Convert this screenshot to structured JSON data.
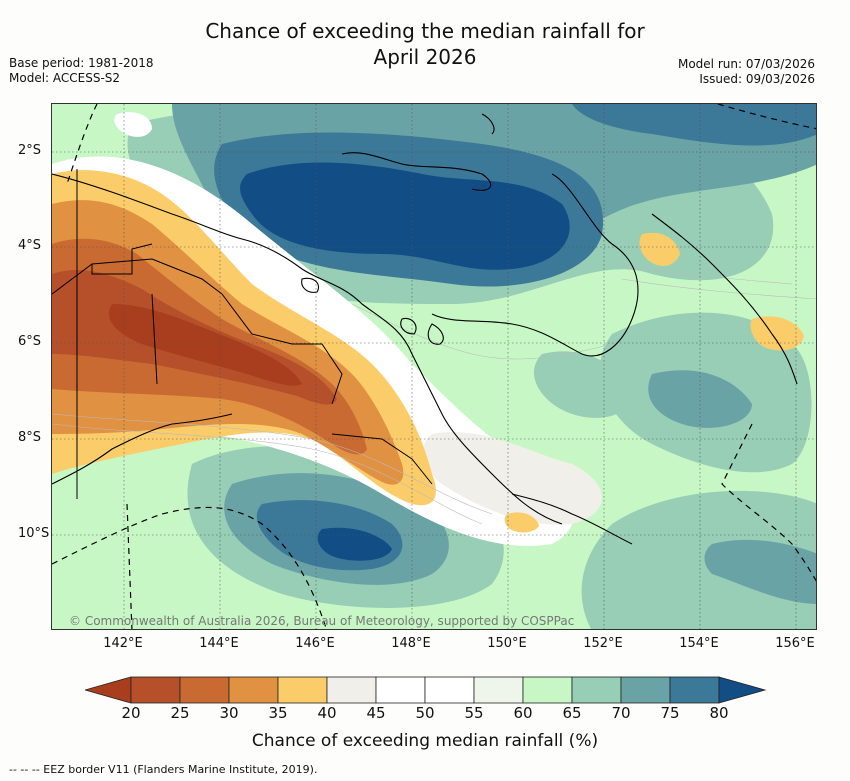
{
  "title_line1": "Chance of exceeding the median rainfall for",
  "title_line2": "April 2026",
  "base_period": "Base period: 1981-2018",
  "model": "Model: ACCESS-S2",
  "model_run": "Model run: 07/03/2026",
  "issued": "Issued: 09/03/2026",
  "credit": "© Commonwealth of Australia 2026, Bureau of Meteorology, supported by COSPPac",
  "lat_labels": [
    "2°S",
    "4°S",
    "6°S",
    "8°S",
    "10°S"
  ],
  "lon_labels": [
    "142°E",
    "144°E",
    "146°E",
    "148°E",
    "150°E",
    "152°E",
    "154°E",
    "156°E"
  ],
  "colorbar": {
    "title": "Chance of exceeding median rainfall (%)",
    "ticks": [
      "20",
      "25",
      "30",
      "35",
      "40",
      "45",
      "50",
      "55",
      "60",
      "65",
      "70",
      "75",
      "80"
    ],
    "colors": [
      "#a83e1d",
      "#b5502a",
      "#c96a32",
      "#e09142",
      "#fbcd6a",
      "#f1efe9",
      "#ffffff",
      "#ffffff",
      "#eef6ec",
      "#c8f7c6",
      "#98cdb6",
      "#6aa3a6",
      "#3c7898",
      "#134d86"
    ]
  },
  "eez_note": "--  --  -- EEZ border V11 (Flanders Marine Institute, 2019)."
}
